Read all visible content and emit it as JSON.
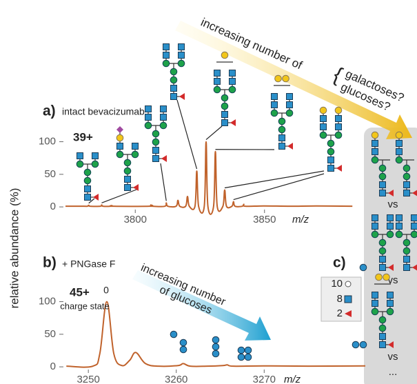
{
  "chart_data": [
    {
      "type": "line",
      "panel_label": "a)",
      "subtitle": "intact bevacizumab",
      "charge": "39+",
      "ylabel": "relative abundance (%)",
      "xlabel": "m/z",
      "color": "#c0622b",
      "xlim": [
        3773,
        3889
      ],
      "ylim": [
        -2,
        108
      ],
      "xticks": [
        3800,
        3850
      ],
      "yticks": [
        0,
        50,
        100
      ],
      "x": [
        3773,
        3780,
        3781.5,
        3782,
        3782.5,
        3786.5,
        3787,
        3787.5,
        3790.5,
        3791,
        3791.5,
        3805.5,
        3806,
        3806.5,
        3811.4,
        3812,
        3812.6,
        3815.8,
        3816.5,
        3817.2,
        3819.5,
        3820.2,
        3820.9,
        3823.1,
        3823.8,
        3824.5,
        3826.7,
        3827.4,
        3828.1,
        3830.3,
        3831,
        3831.7,
        3833.9,
        3834.6,
        3835.3,
        3837.4,
        3838,
        3838.6,
        3841.4,
        3842,
        3842.6,
        3850,
        3860,
        3870,
        3884
      ],
      "series": [
        {
          "name": "intact bevacizumab",
          "color": "#c0622b",
          "values": [
            1,
            1,
            1,
            2.5,
            1,
            1,
            3,
            1,
            1,
            2,
            1,
            1,
            3,
            1,
            1,
            6,
            1,
            1,
            10,
            1,
            1,
            16,
            1,
            1,
            55,
            1,
            1,
            100,
            1,
            1,
            85,
            1,
            1,
            26,
            1,
            1,
            8,
            1,
            1,
            4,
            1,
            1.5,
            1,
            1.5,
            1
          ]
        }
      ]
    },
    {
      "type": "line",
      "panel_label": "b)",
      "subtitle": "+ PNGase F",
      "charge": "45+",
      "charge_note": "charge state",
      "xlabel": "m/z",
      "peak_label": "0",
      "color": "#c0622b",
      "xlim": [
        3247.4,
        3281.5
      ],
      "ylim": [
        -2,
        108
      ],
      "xticks": [
        3250,
        3260,
        3270
      ],
      "yticks": [
        0,
        50,
        100
      ],
      "x": [
        3247.5,
        3250.5,
        3251.3,
        3252.1,
        3252.9,
        3253.8,
        3254.7,
        3255.4,
        3256.5,
        3258,
        3260.2,
        3260.8,
        3261.6,
        3263.5,
        3265.3,
        3265.8,
        3266.5,
        3270,
        3275,
        3281.5
      ],
      "series": [
        {
          "name": "+ PNGase F",
          "color": "#c0622b",
          "values": [
            1,
            1,
            20,
            100,
            20,
            2,
            10,
            22,
            5,
            1,
            2,
            5,
            1,
            1,
            2,
            3,
            1,
            1.5,
            1,
            1.5
          ]
        }
      ]
    }
  ],
  "annotations": {
    "top_arrow": "increasing number of",
    "top_option_1": "galactoses?",
    "top_option_2": "glucoses?",
    "bottom_arrow_1": "increasing number",
    "bottom_arrow_2": "of glucoses"
  },
  "panel_c": {
    "label": "c)",
    "legend": [
      "10",
      "8",
      "2"
    ],
    "separators": [
      "vs",
      "vs",
      "vs",
      "..."
    ]
  }
}
